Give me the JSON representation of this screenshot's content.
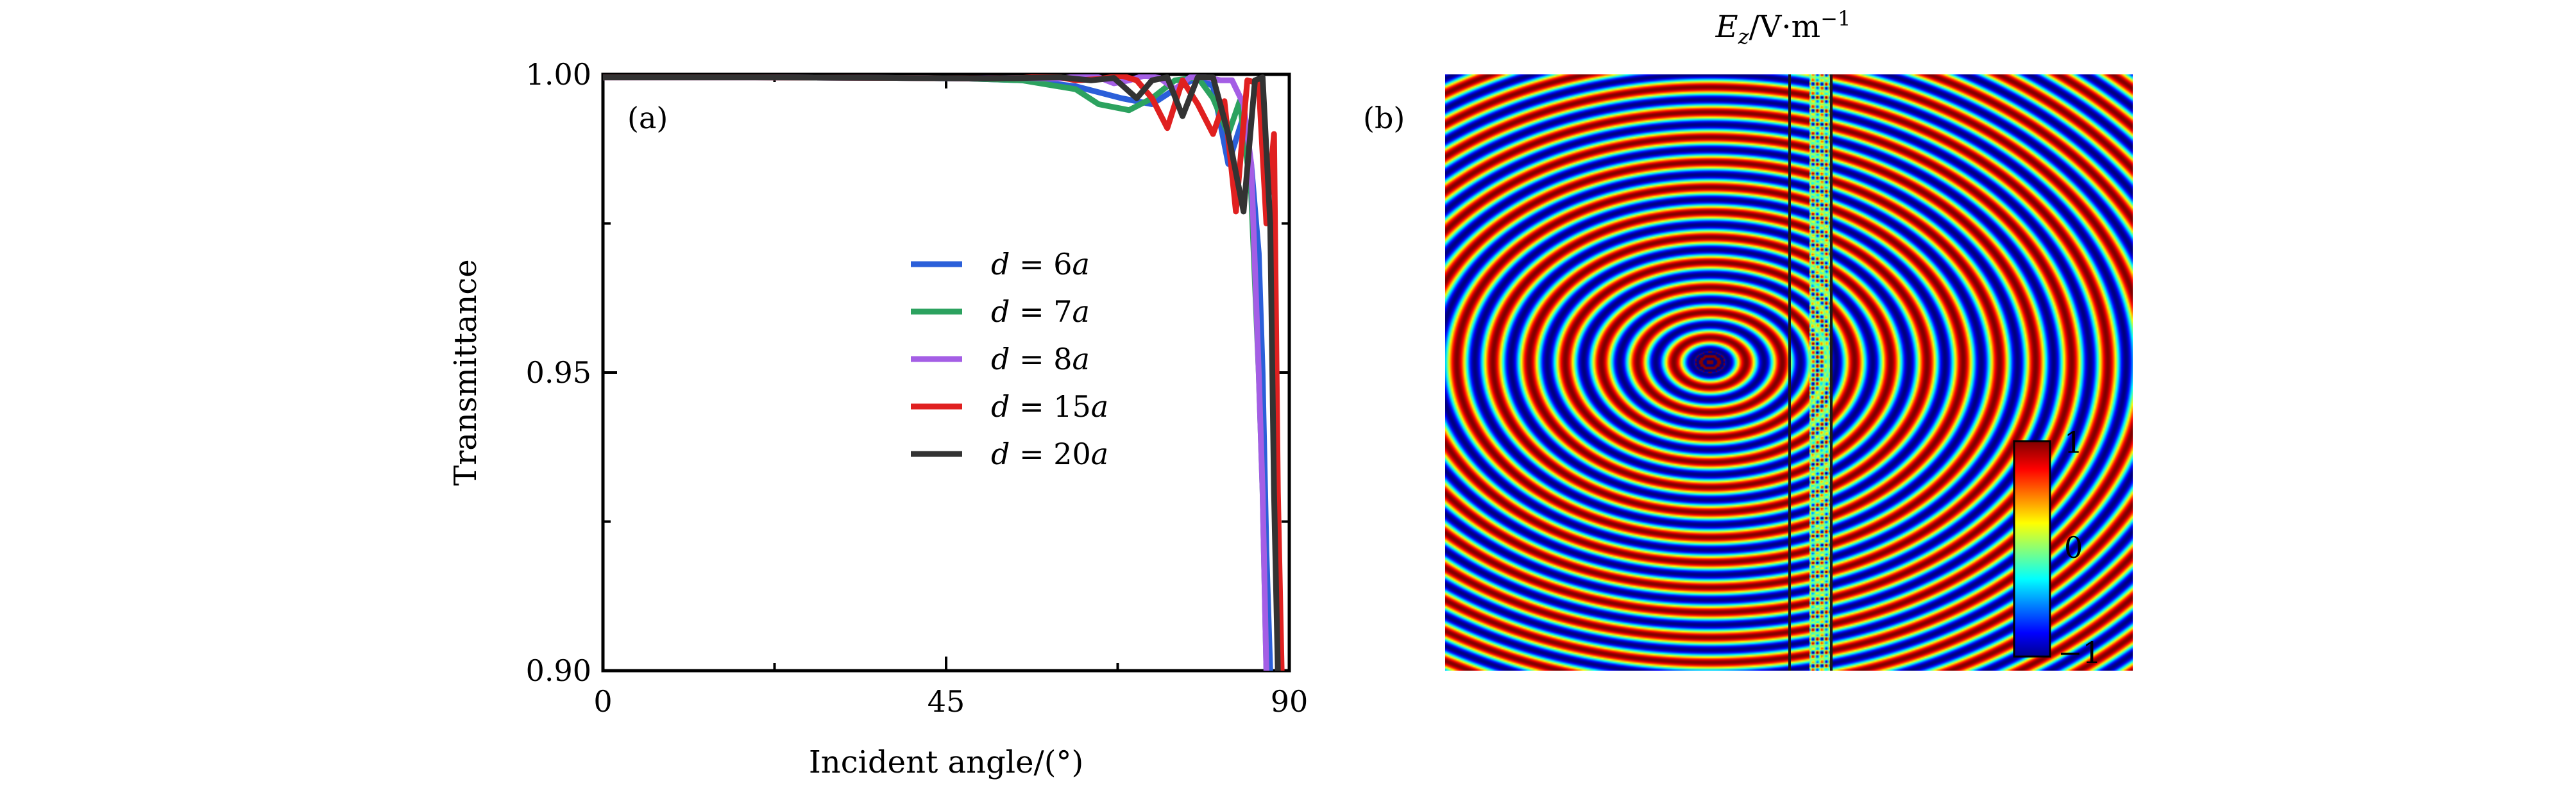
{
  "chart_data": [
    {
      "panel": "(a)",
      "type": "line",
      "xlabel": "Incident angle/(°)",
      "ylabel": "Transmittance",
      "xlim": [
        0,
        90
      ],
      "ylim": [
        0.9,
        1.0
      ],
      "xticks": [
        0,
        45,
        90
      ],
      "xtick_labels": [
        "0",
        "45",
        "90"
      ],
      "yticks": [
        0.9,
        0.95,
        1.0
      ],
      "ytick_labels": [
        "0.90",
        "0.95",
        "1.00"
      ],
      "legend_placement": "center-right",
      "grid": false,
      "series": [
        {
          "name": "d = 6a",
          "legend_var": "d",
          "legend_eq": "=",
          "legend_val": "6",
          "legend_unit": "a",
          "color": "#2b5fd9",
          "x": [
            0,
            20,
            40,
            48,
            55,
            62,
            68,
            72,
            75,
            78,
            80,
            82,
            84,
            85,
            86,
            86.5,
            87,
            87.5
          ],
          "y": [
            0.9995,
            0.9995,
            0.9994,
            0.9993,
            0.999,
            0.998,
            0.996,
            0.995,
            0.9975,
            0.9995,
            0.998,
            0.985,
            0.993,
            0.985,
            0.97,
            0.95,
            0.92,
            0.9
          ]
        },
        {
          "name": "d = 7a",
          "legend_var": "d",
          "legend_eq": "=",
          "legend_val": "7",
          "legend_unit": "a",
          "color": "#2ca25f",
          "x": [
            0,
            20,
            40,
            48,
            55,
            62,
            65,
            69,
            72,
            75,
            78,
            80,
            82,
            83.5,
            85,
            86,
            86.5,
            87
          ],
          "y": [
            0.9995,
            0.9995,
            0.9994,
            0.9993,
            0.999,
            0.9975,
            0.995,
            0.994,
            0.996,
            0.999,
            0.9995,
            0.996,
            0.99,
            0.9955,
            0.98,
            0.95,
            0.93,
            0.9
          ]
        },
        {
          "name": "d = 8a",
          "legend_var": "d",
          "legend_eq": "=",
          "legend_val": "8",
          "legend_unit": "a",
          "color": "#a45ee5",
          "x": [
            0,
            20,
            40,
            48,
            55,
            60,
            63,
            65,
            67,
            69,
            71,
            73,
            75,
            77,
            79,
            81,
            82.5,
            84,
            85,
            86,
            86.5,
            87
          ],
          "y": [
            0.9995,
            0.9995,
            0.9994,
            0.9993,
            0.9994,
            0.9993,
            0.9998,
            0.9995,
            0.9985,
            0.999,
            0.9998,
            0.9994,
            0.9975,
            0.9995,
            0.9995,
            0.999,
            0.999,
            0.995,
            0.985,
            0.95,
            0.93,
            0.9
          ]
        },
        {
          "name": "d = 15a",
          "legend_var": "d",
          "legend_eq": "=",
          "legend_val": "15",
          "legend_unit": "a",
          "color": "#e02020",
          "x": [
            0,
            20,
            40,
            50,
            55,
            58,
            60,
            62,
            65,
            68,
            70,
            72,
            74,
            76,
            78,
            80,
            81.5,
            83,
            84.5,
            86,
            87,
            88,
            88.5,
            89
          ],
          "y": [
            0.9995,
            0.9995,
            0.9994,
            0.9993,
            0.9994,
            0.9997,
            0.9995,
            0.999,
            0.9992,
            0.9998,
            0.999,
            0.996,
            0.991,
            0.999,
            0.995,
            0.99,
            0.9955,
            0.977,
            0.999,
            0.9985,
            0.975,
            0.99,
            0.93,
            0.9
          ]
        },
        {
          "name": "d = 20a",
          "legend_var": "d",
          "legend_eq": "=",
          "legend_val": "20",
          "legend_unit": "a",
          "color": "#333333",
          "x": [
            0,
            20,
            40,
            50,
            55,
            60,
            64,
            67,
            70,
            72,
            74,
            76,
            78,
            80,
            82,
            84,
            85.5,
            86.5,
            87.5,
            88,
            88.5
          ],
          "y": [
            0.9995,
            0.9995,
            0.9994,
            0.9993,
            0.9994,
            0.9995,
            0.999,
            0.9994,
            0.996,
            0.999,
            0.9995,
            0.993,
            0.9995,
            0.9995,
            0.99,
            0.977,
            0.999,
            0.9995,
            0.975,
            0.93,
            0.9
          ]
        }
      ]
    },
    {
      "panel": "(b)",
      "type": "heatmap",
      "title_var": "E",
      "title_sub": "z",
      "title_rest": "/V·m",
      "title_sup": "−1",
      "colorbar": {
        "min": -1,
        "max": 1,
        "tick_labels": [
          "1",
          "0",
          "−1"
        ],
        "colormap": "jet"
      },
      "source_position": [
        -0.23,
        -0.03
      ],
      "slab_position": [
        0.06,
        0.12
      ],
      "wavelength_units": 0.085
    }
  ]
}
